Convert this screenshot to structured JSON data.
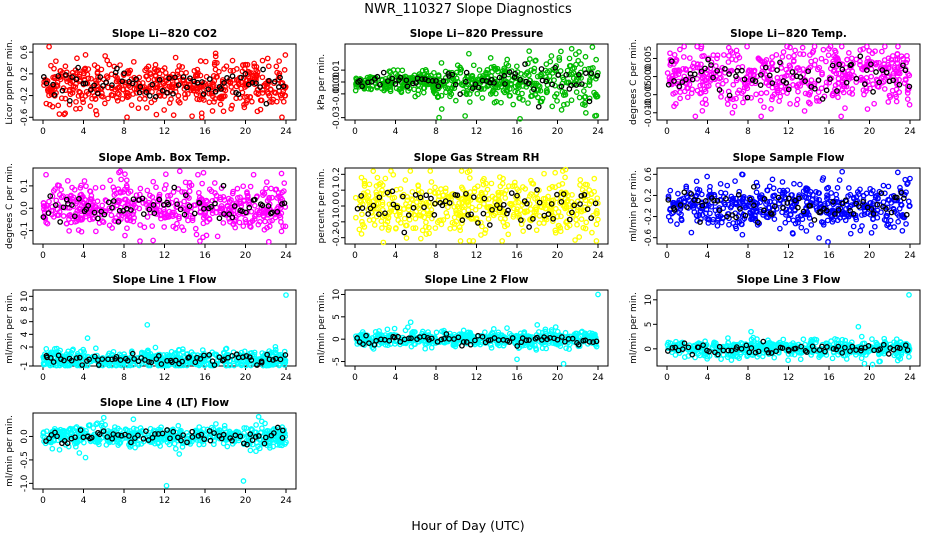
{
  "figure": {
    "title": "NWR_110327  Slope Diagnostics",
    "xlabel": "Hour of Day (UTC)"
  },
  "chart_data": [
    {
      "type": "scatter",
      "title": "Slope Li−820 CO2",
      "ylabel": "Licor ppm per min.",
      "color": "#ff0000",
      "xlim": [
        0,
        24
      ],
      "xticks": [
        0,
        4,
        8,
        12,
        16,
        20,
        24
      ],
      "ylim": [
        -0.65,
        0.75
      ],
      "yticks": [
        -0.6,
        -0.2,
        0.2,
        0.6
      ],
      "ytick_labels": [
        "-0.6",
        "-0.2",
        "0.2",
        "0.6"
      ],
      "spread": 0.22,
      "outliers": [
        [
          0.6,
          0.7
        ],
        [
          5.3,
          -0.55
        ],
        [
          8.3,
          -0.6
        ],
        [
          11.2,
          -0.55
        ],
        [
          23.6,
          -0.6
        ],
        [
          4.2,
          0.55
        ],
        [
          13.1,
          0.5
        ]
      ]
    },
    {
      "type": "scatter",
      "title": "Slope Li−820 Pressure",
      "ylabel": "kPa per min.",
      "color": "#00bb00",
      "xlim": [
        0,
        24
      ],
      "xticks": [
        0,
        4,
        8,
        12,
        16,
        20,
        24
      ],
      "ylim": [
        -0.032,
        0.032
      ],
      "yticks": [
        -0.03,
        -0.01,
        0.0,
        0.01
      ],
      "ytick_labels": [
        "-0.03",
        "-0.01",
        "0.00",
        "0.01"
      ],
      "spread": 0.008,
      "outliers": [
        [
          8.3,
          -0.03
        ],
        [
          16.3,
          -0.031
        ],
        [
          21.4,
          0.028
        ],
        [
          22.8,
          -0.026
        ],
        [
          17.2,
          0.026
        ]
      ]
    },
    {
      "type": "scatter",
      "title": "Slope Li−820 Temp.",
      "ylabel": "degrees C per min.",
      "color": "#ff00ff",
      "xlim": [
        0,
        24
      ],
      "xticks": [
        0,
        4,
        8,
        12,
        16,
        20,
        24
      ],
      "ylim": [
        -0.012,
        0.009
      ],
      "yticks": [
        -0.01,
        -0.005,
        0.0,
        0.005
      ],
      "ytick_labels": [
        "-0.010",
        "-0.005",
        "0.000",
        "0.005"
      ],
      "spread": 0.004,
      "outliers": [
        [
          2.8,
          -0.011
        ],
        [
          9.3,
          -0.011
        ],
        [
          13.4,
          0.008
        ],
        [
          17.2,
          -0.011
        ],
        [
          6.1,
          0.008
        ]
      ]
    },
    {
      "type": "scatter",
      "title": "Slope Amb. Box Temp.",
      "ylabel": "degrees C per min.",
      "color": "#ff00ff",
      "xlim": [
        0,
        24
      ],
      "xticks": [
        0,
        4,
        8,
        12,
        16,
        20,
        24
      ],
      "ylim": [
        -0.16,
        0.18
      ],
      "yticks": [
        -0.1,
        0.0,
        0.1
      ],
      "ytick_labels": [
        "-0.1",
        "0.0",
        "0.1"
      ],
      "spread": 0.055,
      "outliers": [
        [
          0.3,
          0.15
        ],
        [
          7.5,
          0.16
        ],
        [
          15.3,
          0.15
        ],
        [
          22.3,
          -0.15
        ],
        [
          20.8,
          0.15
        ]
      ]
    },
    {
      "type": "scatter",
      "title": "Slope Gas Stream RH",
      "ylabel": "percent per min.",
      "color": "#ffff00",
      "xlim": [
        0,
        24
      ],
      "xticks": [
        0,
        4,
        8,
        12,
        16,
        20,
        24
      ],
      "ylim": [
        -0.24,
        0.24
      ],
      "yticks": [
        -0.2,
        -0.1,
        0.0,
        0.1,
        0.2
      ],
      "ytick_labels": [
        "-0.2",
        "-0.1",
        "0.0",
        "0.1",
        "0.2"
      ],
      "spread": 0.09,
      "outliers": [
        [
          1.8,
          0.22
        ],
        [
          2.8,
          -0.23
        ],
        [
          20.8,
          0.23
        ],
        [
          11.3,
          -0.22
        ]
      ]
    },
    {
      "type": "scatter",
      "title": "Slope Sample Flow",
      "ylabel": "ml/min per min.",
      "color": "#0000ff",
      "xlim": [
        0,
        24
      ],
      "xticks": [
        0,
        4,
        8,
        12,
        16,
        20,
        24
      ],
      "ylim": [
        -0.72,
        0.72
      ],
      "yticks": [
        -0.6,
        -0.2,
        0.2,
        0.6
      ],
      "ytick_labels": [
        "-0.6",
        "-0.2",
        "0.2",
        "0.6"
      ],
      "spread": 0.22,
      "outliers": [
        [
          15.9,
          -0.68
        ],
        [
          17.3,
          0.65
        ],
        [
          7.4,
          0.6
        ],
        [
          24.0,
          0.52
        ]
      ]
    },
    {
      "type": "scatter",
      "title": "Slope Line 1 Flow",
      "ylabel": "ml/min per min.",
      "color": "#00ffff",
      "xlim": [
        0,
        24
      ],
      "xticks": [
        0,
        4,
        8,
        12,
        16,
        20,
        24
      ],
      "ylim": [
        -1,
        11
      ],
      "yticks": [
        -1,
        2,
        4,
        6,
        8,
        10
      ],
      "ytick_labels": [
        "-1",
        "2",
        "4",
        "6",
        "8",
        "10"
      ],
      "spread": 0.8,
      "outliers": [
        [
          24.0,
          10.2
        ],
        [
          10.3,
          5.5
        ],
        [
          4.4,
          3.4
        ],
        [
          19.6,
          -0.9
        ]
      ]
    },
    {
      "type": "scatter",
      "title": "Slope Line 2 Flow",
      "ylabel": "ml/min per min.",
      "color": "#00ffff",
      "xlim": [
        0,
        24
      ],
      "xticks": [
        0,
        4,
        8,
        12,
        16,
        20,
        24
      ],
      "ylim": [
        -6,
        11
      ],
      "yticks": [
        -5,
        0,
        5,
        10
      ],
      "ytick_labels": [
        "-5",
        "0",
        "5",
        "10"
      ],
      "spread": 0.9,
      "outliers": [
        [
          24.0,
          10
        ],
        [
          20.6,
          -5.5
        ],
        [
          16.0,
          -4.5
        ],
        [
          5.5,
          3.8
        ],
        [
          18.0,
          3.2
        ]
      ]
    },
    {
      "type": "scatter",
      "title": "Slope Line 3 Flow",
      "ylabel": "ml/min per min.",
      "color": "#00ffff",
      "xlim": [
        0,
        24
      ],
      "xticks": [
        0,
        4,
        8,
        12,
        16,
        20,
        24
      ],
      "ylim": [
        -3.5,
        12
      ],
      "yticks": [
        0,
        5,
        10
      ],
      "ytick_labels": [
        "0",
        "5",
        "10"
      ],
      "spread": 0.9,
      "outliers": [
        [
          23.9,
          11
        ],
        [
          19.5,
          -3
        ],
        [
          20.3,
          -3.2
        ],
        [
          18.9,
          4.5
        ],
        [
          8.3,
          3.5
        ]
      ]
    },
    {
      "type": "scatter",
      "title": "Slope Line 4 (LT) Flow",
      "ylabel": "ml/min per min.",
      "color": "#00ffff",
      "xlim": [
        0,
        24
      ],
      "xticks": [
        0,
        4,
        8,
        12,
        16,
        20,
        24
      ],
      "ylim": [
        -1.12,
        0.5
      ],
      "yticks": [
        -1.0,
        -0.5,
        0.0
      ],
      "ytick_labels": [
        "-1.0",
        "-0.5",
        "0.0"
      ],
      "spread": 0.12,
      "outliers": [
        [
          12.2,
          -1.05
        ],
        [
          19.8,
          -0.95
        ],
        [
          4.2,
          -0.45
        ],
        [
          6.0,
          0.4
        ],
        [
          21.3,
          0.42
        ]
      ]
    }
  ]
}
